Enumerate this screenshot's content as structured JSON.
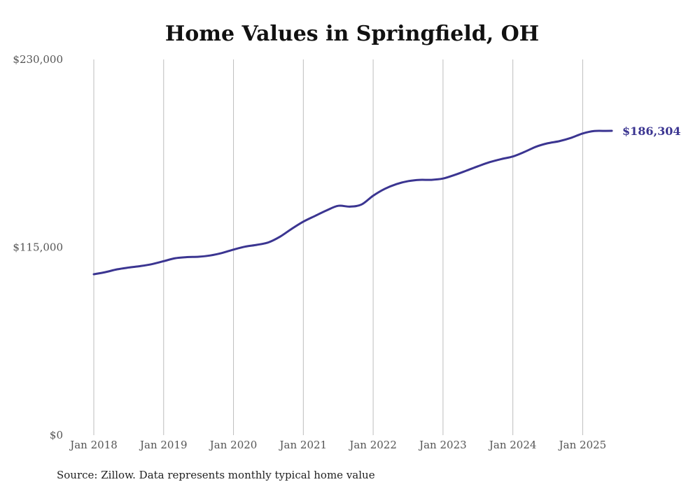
{
  "chart_data": {
    "type": "line",
    "title": "Home Values in Springfield, OH",
    "xlabel": "",
    "ylabel": "",
    "x_ticks": [
      "Jan 2018",
      "Jan 2019",
      "Jan 2020",
      "Jan 2021",
      "Jan 2022",
      "Jan 2023",
      "Jan 2024",
      "Jan 2025"
    ],
    "y_ticks": [
      "$0",
      "$115,000",
      "$230,000"
    ],
    "y_tick_values": [
      0,
      115000,
      230000
    ],
    "ylim": [
      0,
      230000
    ],
    "xlim": [
      "2018-01",
      "2025-06"
    ],
    "grid": "vertical",
    "line_color": "#3b3591",
    "series": [
      {
        "x": [
          "2018-01",
          "2018-03",
          "2018-05",
          "2018-07",
          "2018-09",
          "2018-11",
          "2019-01",
          "2019-03",
          "2019-05",
          "2019-07",
          "2019-09",
          "2019-11",
          "2020-01",
          "2020-03",
          "2020-05",
          "2020-07",
          "2020-09",
          "2020-11",
          "2021-01",
          "2021-03",
          "2021-05",
          "2021-07",
          "2021-09",
          "2021-11",
          "2022-01",
          "2022-03",
          "2022-05",
          "2022-07",
          "2022-09",
          "2022-11",
          "2023-01",
          "2023-03",
          "2023-05",
          "2023-07",
          "2023-09",
          "2023-11",
          "2024-01",
          "2024-03",
          "2024-05",
          "2024-07",
          "2024-09",
          "2024-11",
          "2025-01",
          "2025-03",
          "2025-05",
          "2025-06"
        ],
        "values": [
          98500,
          99800,
          101500,
          102600,
          103500,
          104700,
          106500,
          108300,
          109000,
          109200,
          110000,
          111500,
          113600,
          115400,
          116500,
          118000,
          121500,
          126300,
          130700,
          134200,
          137600,
          140400,
          139900,
          141200,
          146600,
          150800,
          153700,
          155500,
          156300,
          156300,
          157100,
          159300,
          161900,
          164600,
          167100,
          169000,
          170600,
          173400,
          176600,
          178700,
          180000,
          182000,
          184700,
          186200,
          186250,
          186304
        ]
      }
    ],
    "end_label": "$186,304"
  },
  "source": "Source: Zillow. Data represents monthly typical home value"
}
